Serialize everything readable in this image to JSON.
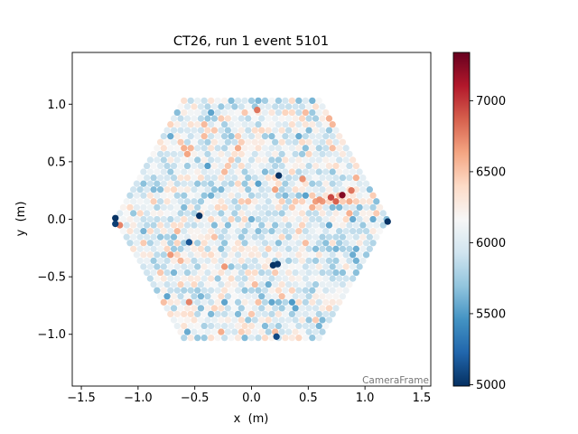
{
  "chart_data": {
    "type": "heatmap",
    "title": "CT26, run 1 event 5101",
    "xlabel": "x  (m)",
    "ylabel": "y  (m)",
    "xlim": [
      -1.58,
      1.58
    ],
    "ylim": [
      -1.45,
      1.45
    ],
    "x_ticks": [
      -1.5,
      -1.0,
      -0.5,
      0.0,
      0.5,
      1.0,
      1.5
    ],
    "x_tick_labels": [
      "−1.5",
      "−1.0",
      "−0.5",
      "0.0",
      "0.5",
      "1.0",
      "1.5"
    ],
    "y_ticks": [
      -1.0,
      -0.5,
      0.0,
      0.5,
      1.0
    ],
    "y_tick_labels": [
      "−1.0",
      "−0.5",
      "0.0",
      "0.5",
      "1.0"
    ],
    "frame_label": "CameraFrame",
    "camera_shape": "hexagon",
    "camera_extent_m": {
      "flat_top_y": 1.05,
      "max_x": 1.2
    },
    "pixel_grid": "hexagonal",
    "colormap": "RdBu_r",
    "colorbar": {
      "min": 4990,
      "max": 7340,
      "ticks": [
        5000,
        5500,
        6000,
        6500,
        7000
      ],
      "tick_labels": [
        "5000",
        "5500",
        "6000",
        "6500",
        "7000"
      ]
    },
    "typical_range": [
      5400,
      6700
    ],
    "hot_pixels": [
      {
        "x": 0.8,
        "y": 0.21,
        "value": 7250
      },
      {
        "x": 0.7,
        "y": 0.19,
        "value": 6950
      },
      {
        "x": 0.88,
        "y": 0.25,
        "value": 6800
      },
      {
        "x": 0.6,
        "y": 0.17,
        "value": 6700
      },
      {
        "x": 0.05,
        "y": 0.95,
        "value": 6800
      },
      {
        "x": -0.55,
        "y": -0.72,
        "value": 6750
      },
      {
        "x": 0.45,
        "y": 0.35,
        "value": 6700
      }
    ],
    "cold_pixels": [
      {
        "x": -1.2,
        "y": 0.01,
        "value": 5000
      },
      {
        "x": -1.2,
        "y": -0.04,
        "value": 5050
      },
      {
        "x": 1.2,
        "y": -0.02,
        "value": 5000
      },
      {
        "x": 0.24,
        "y": 0.38,
        "value": 5000
      },
      {
        "x": -0.46,
        "y": 0.03,
        "value": 5000
      },
      {
        "x": 0.19,
        "y": -0.4,
        "value": 5000
      },
      {
        "x": 0.23,
        "y": -0.39,
        "value": 5020
      },
      {
        "x": 0.22,
        "y": -1.02,
        "value": 5100
      },
      {
        "x": -0.55,
        "y": -0.2,
        "value": 5150
      }
    ]
  }
}
